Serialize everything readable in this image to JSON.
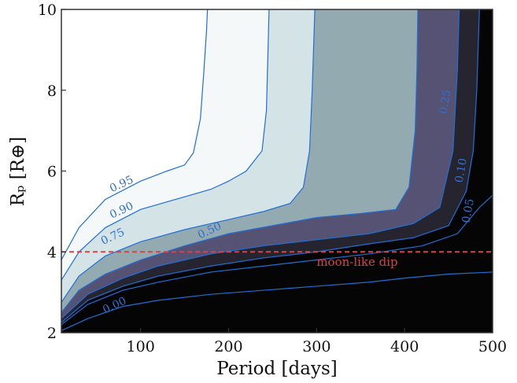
{
  "chart_data": {
    "type": "area",
    "title": "",
    "xlabel": "Period [days]",
    "ylabel": "Rₚ [R⊕]",
    "xlim": [
      10,
      500
    ],
    "ylim": [
      2,
      10
    ],
    "x_ticks": [
      100,
      200,
      300,
      400,
      500
    ],
    "x_tick_labels": [
      "100",
      "200",
      "300",
      "400",
      "500"
    ],
    "y_ticks": [
      2,
      4,
      6,
      8,
      10
    ],
    "y_tick_labels": [
      "2",
      "4",
      "6",
      "8",
      "10"
    ],
    "colors": {
      "line": "#1f6fd6",
      "label": "#2f6fd0",
      "dip_line": "#d64545",
      "fills": [
        "#f4f8f9",
        "#d3e3e6",
        "#94aab1",
        "#565273",
        "#26242f",
        "#050506"
      ]
    },
    "levels": [
      {
        "level": 0.95,
        "label": "0.95",
        "points": [
          [
            10,
            3.8
          ],
          [
            30,
            4.6
          ],
          [
            60,
            5.3
          ],
          [
            100,
            5.75
          ],
          [
            130,
            6.0
          ],
          [
            150,
            6.15
          ],
          [
            160,
            6.45
          ],
          [
            168,
            7.3
          ],
          [
            172,
            8.5
          ],
          [
            175,
            9.5
          ],
          [
            176,
            10
          ]
        ]
      },
      {
        "level": 0.9,
        "label": "0.90",
        "points": [
          [
            10,
            3.3
          ],
          [
            30,
            4.0
          ],
          [
            60,
            4.6
          ],
          [
            100,
            5.05
          ],
          [
            140,
            5.3
          ],
          [
            180,
            5.55
          ],
          [
            200,
            5.75
          ],
          [
            220,
            6.0
          ],
          [
            238,
            6.5
          ],
          [
            243,
            7.5
          ],
          [
            246,
            10
          ]
        ]
      },
      {
        "level": 0.75,
        "label": "0.75",
        "points": [
          [
            10,
            2.75
          ],
          [
            30,
            3.4
          ],
          [
            60,
            3.9
          ],
          [
            100,
            4.25
          ],
          [
            150,
            4.55
          ],
          [
            200,
            4.8
          ],
          [
            240,
            5.0
          ],
          [
            270,
            5.2
          ],
          [
            285,
            5.6
          ],
          [
            292,
            6.5
          ],
          [
            295,
            8.0
          ],
          [
            298,
            10
          ]
        ]
      },
      {
        "level": 0.5,
        "label": "0.50",
        "points": [
          [
            10,
            2.5
          ],
          [
            30,
            3.05
          ],
          [
            60,
            3.45
          ],
          [
            100,
            3.8
          ],
          [
            150,
            4.15
          ],
          [
            200,
            4.45
          ],
          [
            250,
            4.65
          ],
          [
            300,
            4.85
          ],
          [
            350,
            4.95
          ],
          [
            390,
            5.05
          ],
          [
            405,
            5.6
          ],
          [
            412,
            7.0
          ],
          [
            414,
            8.5
          ],
          [
            415,
            10
          ]
        ]
      },
      {
        "level": 0.25,
        "label": "0.25",
        "points": [
          [
            10,
            2.35
          ],
          [
            40,
            2.95
          ],
          [
            80,
            3.35
          ],
          [
            120,
            3.65
          ],
          [
            180,
            3.95
          ],
          [
            240,
            4.15
          ],
          [
            300,
            4.3
          ],
          [
            360,
            4.45
          ],
          [
            410,
            4.7
          ],
          [
            440,
            5.1
          ],
          [
            455,
            6.5
          ],
          [
            460,
            8.5
          ],
          [
            462,
            10
          ]
        ]
      },
      {
        "level": 0.1,
        "label": "0.10",
        "points": [
          [
            10,
            2.25
          ],
          [
            40,
            2.8
          ],
          [
            80,
            3.15
          ],
          [
            120,
            3.4
          ],
          [
            180,
            3.65
          ],
          [
            240,
            3.85
          ],
          [
            300,
            4.0
          ],
          [
            360,
            4.2
          ],
          [
            410,
            4.35
          ],
          [
            450,
            4.65
          ],
          [
            470,
            5.5
          ],
          [
            478,
            6.5
          ],
          [
            482,
            8.0
          ],
          [
            485,
            10
          ]
        ]
      },
      {
        "level": 0.05,
        "label": "0.05",
        "points": [
          [
            10,
            2.2
          ],
          [
            40,
            2.7
          ],
          [
            80,
            3.05
          ],
          [
            120,
            3.25
          ],
          [
            180,
            3.5
          ],
          [
            240,
            3.65
          ],
          [
            300,
            3.8
          ],
          [
            360,
            3.95
          ],
          [
            420,
            4.15
          ],
          [
            460,
            4.45
          ],
          [
            485,
            5.1
          ],
          [
            495,
            5.3
          ],
          [
            500,
            5.4
          ]
        ]
      },
      {
        "level": 0.0,
        "label": "0.00",
        "points": [
          [
            10,
            2.05
          ],
          [
            40,
            2.35
          ],
          [
            80,
            2.65
          ],
          [
            120,
            2.8
          ],
          [
            180,
            2.95
          ],
          [
            240,
            3.05
          ],
          [
            300,
            3.15
          ],
          [
            360,
            3.25
          ],
          [
            400,
            3.35
          ],
          [
            450,
            3.45
          ],
          [
            500,
            3.5
          ]
        ]
      }
    ],
    "contour_labels": [
      {
        "text": "0.95",
        "x": 80,
        "y": 5.6
      },
      {
        "text": "0.90",
        "x": 80,
        "y": 4.95
      },
      {
        "text": "0.75",
        "x": 70,
        "y": 4.3
      },
      {
        "text": "0.50",
        "x": 180,
        "y": 4.45
      },
      {
        "text": "0.00",
        "x": 72,
        "y": 2.6
      },
      {
        "text": "0.10",
        "x": 468,
        "y": 6.0
      },
      {
        "text": "0.05",
        "x": 476,
        "y": 5.0
      },
      {
        "text": "0.25",
        "x": 450,
        "y": 7.7
      }
    ],
    "annotation": {
      "text": "moon-like dip",
      "y": 4.0,
      "label_x": 300,
      "label_y": 3.65
    }
  }
}
